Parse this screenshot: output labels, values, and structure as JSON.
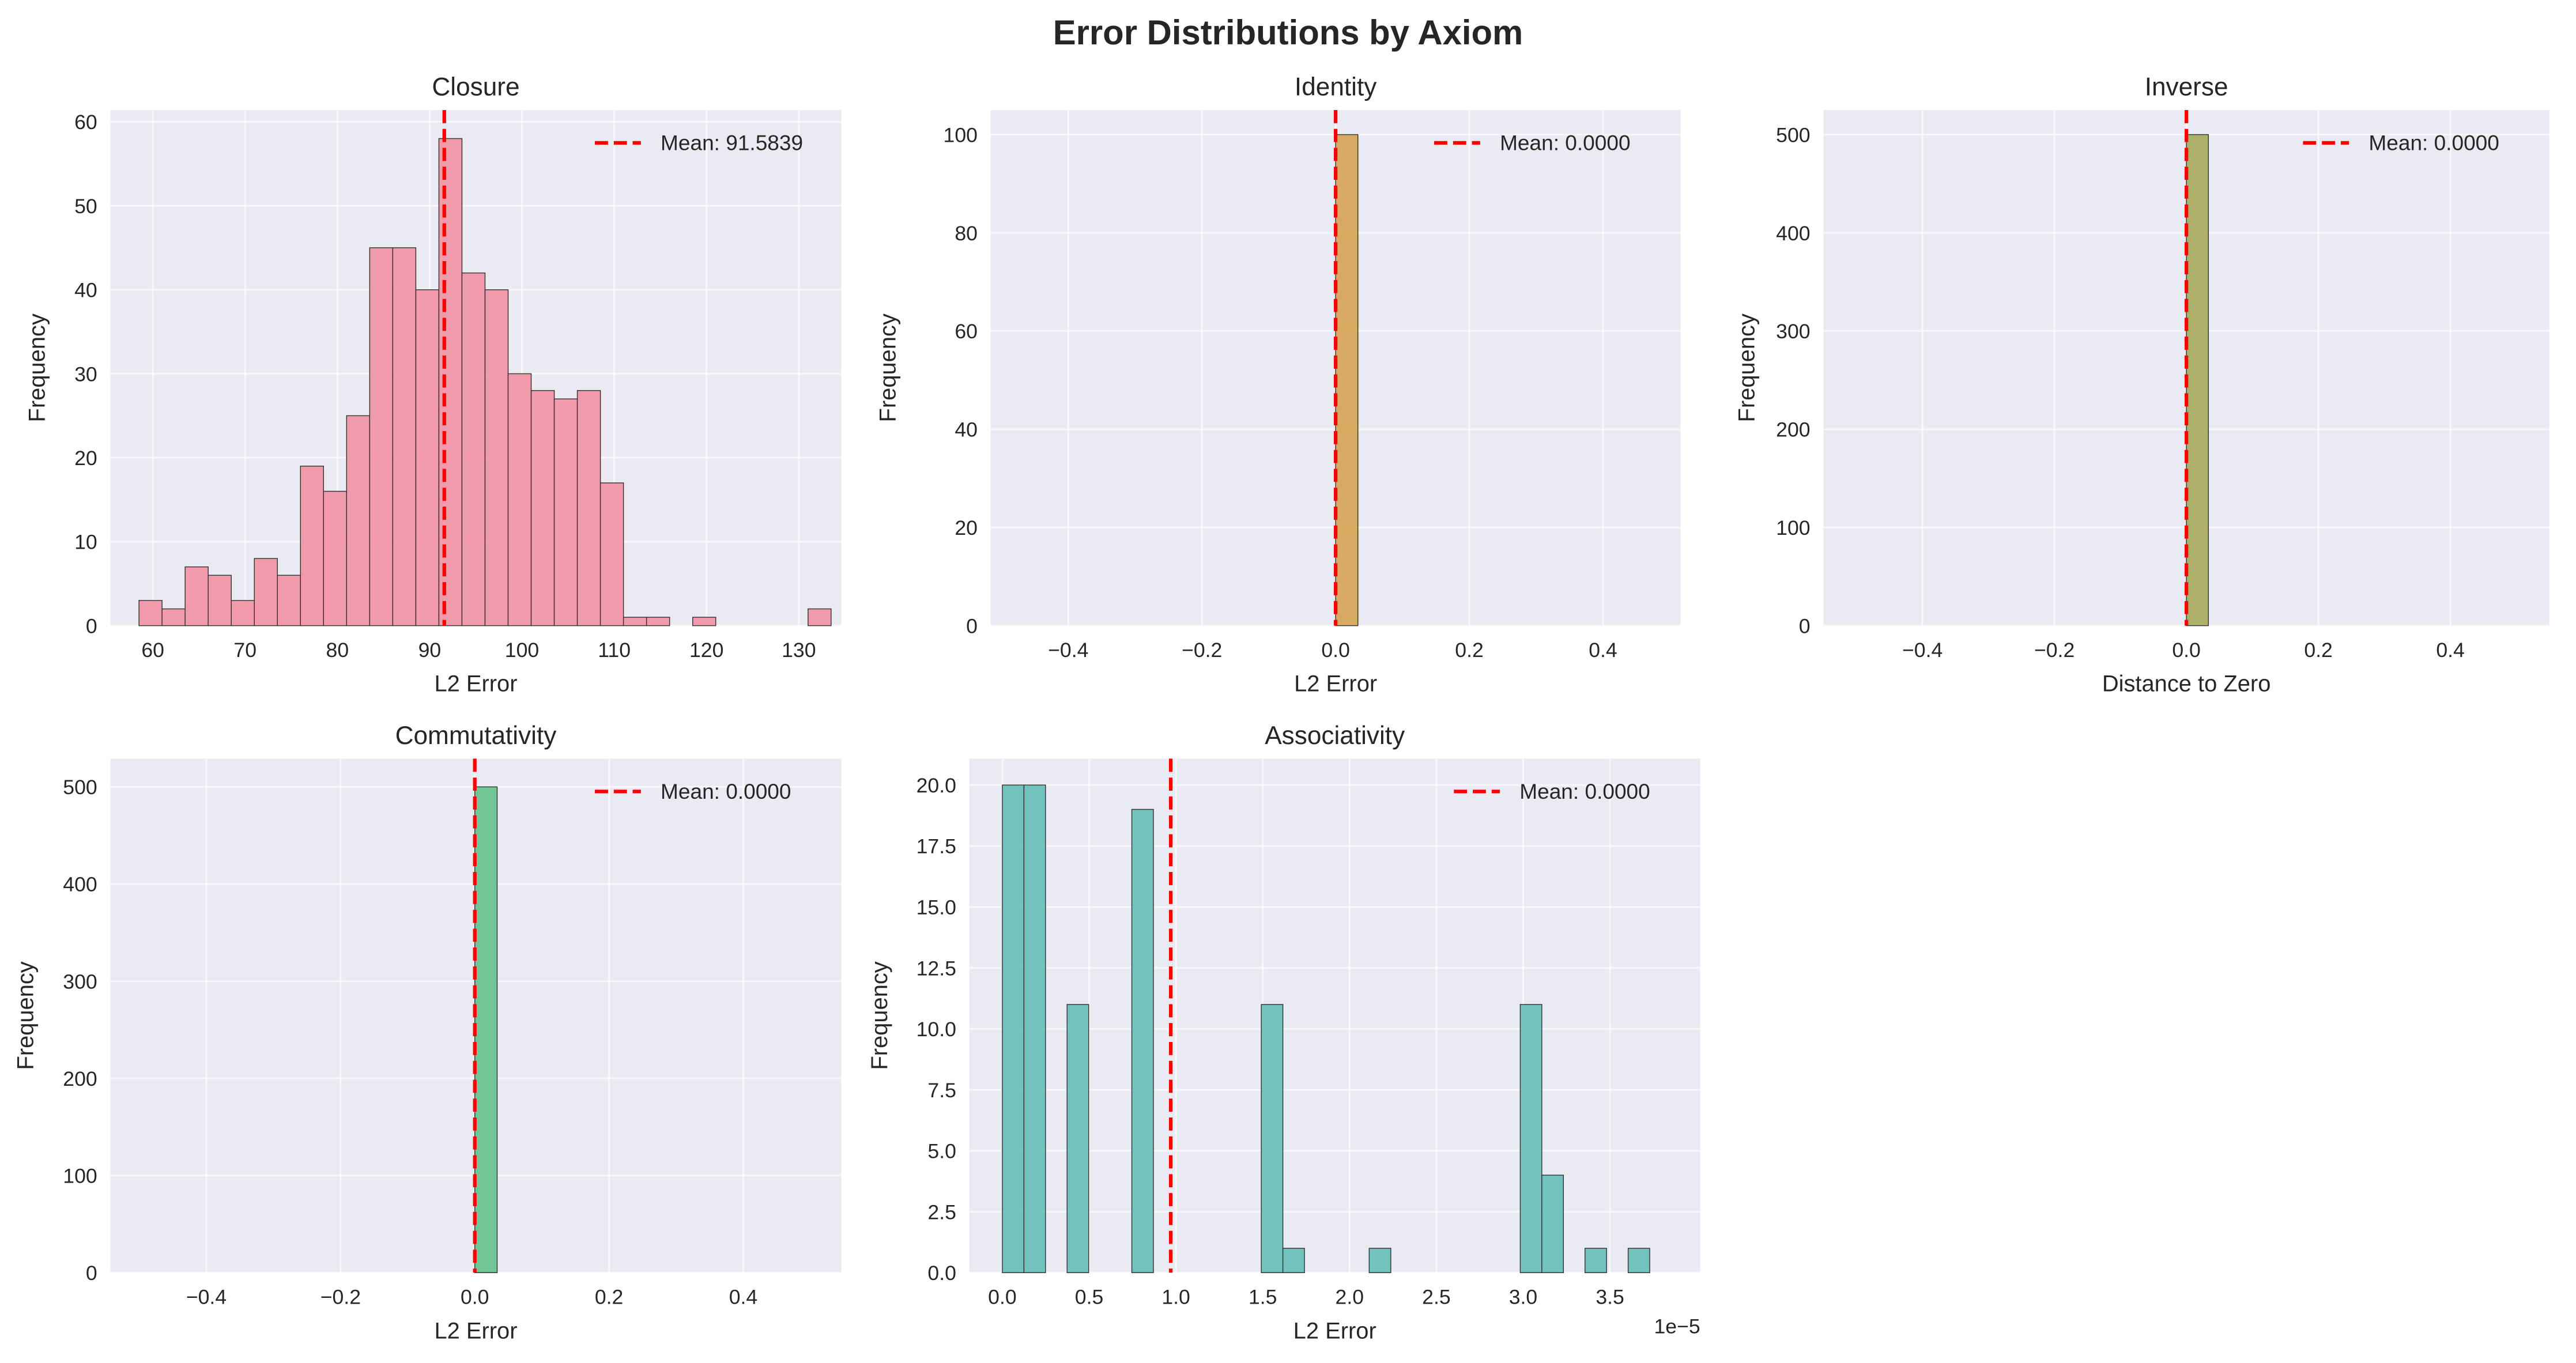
{
  "chart_data": {
    "title": "Error Distributions by Axiom",
    "mean_color": "#ff0000",
    "panels": [
      {
        "type": "bar",
        "title": "Closure",
        "xlabel": "L2 Error",
        "ylabel": "Frequency",
        "color": "#f196a8",
        "xlim": [
          55.4,
          134.6
        ],
        "ylim": [
          0,
          61.4
        ],
        "xticks": [
          60,
          70,
          80,
          90,
          100,
          110,
          120,
          130
        ],
        "xtick_labels": [
          "60",
          "70",
          "80",
          "90",
          "100",
          "110",
          "120",
          "130"
        ],
        "yticks": [
          0,
          10,
          20,
          30,
          40,
          50,
          60
        ],
        "ytick_labels": [
          "0",
          "10",
          "20",
          "30",
          "40",
          "50",
          "60"
        ],
        "bin_start": 58.5,
        "bin_width": 2.5,
        "counts": [
          3,
          2,
          7,
          6,
          3,
          8,
          6,
          19,
          16,
          25,
          45,
          45,
          40,
          58,
          42,
          40,
          30,
          28,
          27,
          28,
          17,
          1,
          1,
          0,
          1,
          0,
          0,
          0,
          0,
          2
        ],
        "mean": 91.5839,
        "legend": "Mean: 91.5839",
        "x_offset_label": ""
      },
      {
        "type": "bar",
        "title": "Identity",
        "xlabel": "L2 Error",
        "ylabel": "Frequency",
        "color": "#d6a55a",
        "xlim": [
          -0.516,
          0.516
        ],
        "ylim": [
          0,
          105
        ],
        "xticks": [
          -0.4,
          -0.2,
          0.0,
          0.2,
          0.4
        ],
        "xtick_labels": [
          "−0.4",
          "−0.2",
          "0.0",
          "0.2",
          "0.4"
        ],
        "yticks": [
          0,
          20,
          40,
          60,
          80,
          100
        ],
        "ytick_labels": [
          "0",
          "20",
          "40",
          "60",
          "80",
          "100"
        ],
        "bin_start": 0,
        "bin_width": 0.0333,
        "counts": [
          100
        ],
        "mean": 0,
        "legend": "Mean: 0.0000",
        "x_offset_label": ""
      },
      {
        "type": "bar",
        "title": "Inverse",
        "xlabel": "Distance to Zero",
        "ylabel": "Frequency",
        "color": "#a9ad63",
        "xlim": [
          -0.55,
          0.55
        ],
        "ylim": [
          0,
          525
        ],
        "xticks": [
          -0.4,
          -0.2,
          0.0,
          0.2,
          0.4
        ],
        "xtick_labels": [
          "−0.4",
          "−0.2",
          "0.0",
          "0.2",
          "0.4"
        ],
        "yticks": [
          0,
          100,
          200,
          300,
          400,
          500
        ],
        "ytick_labels": [
          "0",
          "100",
          "200",
          "300",
          "400",
          "500"
        ],
        "bin_start": 0,
        "bin_width": 0.0333,
        "counts": [
          500
        ],
        "mean": 0,
        "legend": "Mean: 0.0000",
        "x_offset_label": ""
      },
      {
        "type": "bar",
        "title": "Commutativity",
        "xlabel": "L2 Error",
        "ylabel": "Frequency",
        "color": "#6cc38f",
        "xlim": [
          -0.543,
          0.546
        ],
        "ylim": [
          0,
          529
        ],
        "xticks": [
          -0.4,
          -0.2,
          0.0,
          0.2,
          0.4
        ],
        "xtick_labels": [
          "−0.4",
          "−0.2",
          "0.0",
          "0.2",
          "0.4"
        ],
        "yticks": [
          0,
          100,
          200,
          300,
          400,
          500
        ],
        "ytick_labels": [
          "0",
          "100",
          "200",
          "300",
          "400",
          "500"
        ],
        "bin_start": 0,
        "bin_width": 0.0333,
        "counts": [
          500
        ],
        "mean": 0,
        "legend": "Mean: 0.0000",
        "x_offset_label": ""
      },
      {
        "type": "bar",
        "title": "Associativity",
        "xlabel": "L2 Error",
        "ylabel": "Frequency",
        "color": "#6bc0ba",
        "xlim": [
          -0.19,
          4.02
        ],
        "ylim": [
          0,
          21.08
        ],
        "xticks": [
          0,
          0.5,
          1.0,
          1.5,
          2.0,
          2.5,
          3.0,
          3.5
        ],
        "xtick_labels": [
          "0.0",
          "0.5",
          "1.0",
          "1.5",
          "2.0",
          "2.5",
          "3.0",
          "3.5"
        ],
        "yticks": [
          0,
          2.5,
          5,
          7.5,
          10,
          12.5,
          15,
          17.5,
          20
        ],
        "ytick_labels": [
          "0.0",
          "2.5",
          "5.0",
          "7.5",
          "10.0",
          "12.5",
          "15.0",
          "17.5",
          "20.0"
        ],
        "bin_start": 0,
        "bin_width": 0.1243,
        "counts": [
          20,
          20,
          0,
          11,
          0,
          0,
          19,
          0,
          0,
          0,
          0,
          0,
          11,
          1,
          0,
          0,
          0,
          1,
          0,
          0,
          0,
          0,
          0,
          0,
          11,
          4,
          0,
          1,
          0,
          1
        ],
        "mean": 0.97,
        "legend": "Mean: 0.0000",
        "x_offset_label": "1e−5"
      }
    ]
  }
}
